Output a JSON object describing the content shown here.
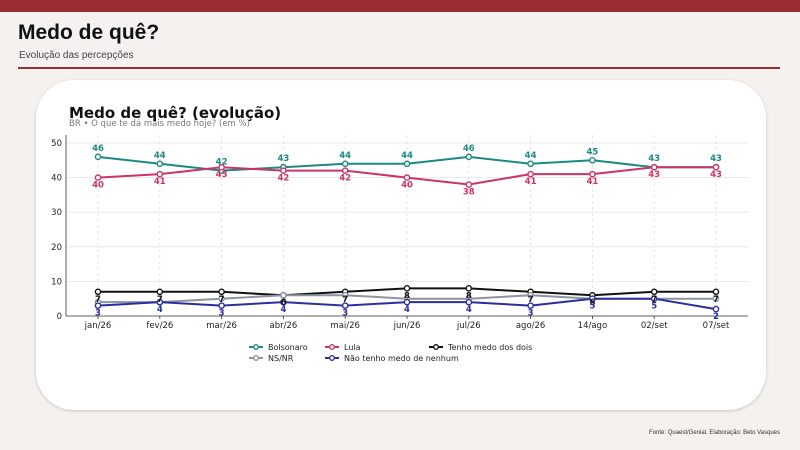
{
  "header": {
    "title": "Medo de quê?",
    "subtitle": "Evolução das percepções"
  },
  "footer": {
    "source": "Fonte: Quaest/Genial. Elaboração: Beto Vasques"
  },
  "chart_data": {
    "type": "line",
    "title": "Medo de quê? (evolução)",
    "subtitle": "BR • O que te dá mais medo hoje? (em %)",
    "xlabel": "",
    "ylabel": "",
    "ylim": [
      0,
      50
    ],
    "yticks": [
      0,
      10,
      20,
      30,
      40,
      50
    ],
    "grid": true,
    "legend_position": "bottom",
    "categories": [
      "jan/26",
      "fev/26",
      "mar/26",
      "abr/26",
      "mai/26",
      "jun/26",
      "jul/26",
      "ago/26",
      "14/ago",
      "02/set",
      "07/set"
    ],
    "series": [
      {
        "name": "Bolsonaro",
        "color": "#1b8a83",
        "labels": "above",
        "values": [
          46,
          44,
          42,
          43,
          44,
          44,
          46,
          44,
          45,
          43,
          43
        ]
      },
      {
        "name": "Lula",
        "color": "#cc3366",
        "labels": "below",
        "values": [
          40,
          41,
          43,
          42,
          42,
          40,
          38,
          41,
          41,
          43,
          43
        ]
      },
      {
        "name": "Tenho medo dos dois",
        "color": "#111111",
        "labels": "below",
        "values": [
          7,
          7,
          7,
          6,
          7,
          8,
          8,
          7,
          6,
          7,
          7
        ]
      },
      {
        "name": "NS/NR",
        "color": "#8a959e",
        "labels": "none",
        "values": [
          4,
          4,
          5,
          6,
          6,
          5,
          5,
          6,
          5,
          5,
          5
        ]
      },
      {
        "name": "Não tenho medo de nenhum",
        "color": "#2b2f9e",
        "labels": "below",
        "values": [
          3,
          4,
          3,
          4,
          3,
          4,
          4,
          3,
          5,
          5,
          2
        ]
      }
    ]
  }
}
